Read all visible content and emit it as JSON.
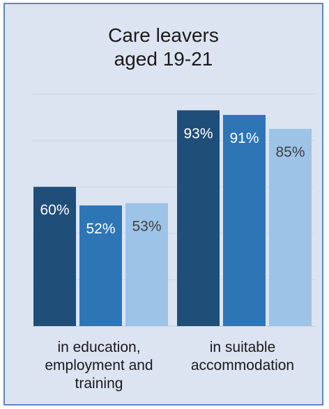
{
  "chart_data": {
    "type": "bar",
    "title_lines": [
      "Care leavers",
      "aged 19-21"
    ],
    "categories": [
      [
        "in education,",
        "employment and",
        "training"
      ],
      [
        "in suitable",
        "accommodation"
      ]
    ],
    "series": [
      {
        "values": [
          60,
          93
        ],
        "labels": [
          "60%",
          "93%"
        ]
      },
      {
        "values": [
          52,
          91
        ],
        "labels": [
          "52%",
          "91%"
        ]
      },
      {
        "values": [
          53,
          85
        ],
        "labels": [
          "53%",
          "85%"
        ]
      }
    ],
    "ylim": [
      0,
      100
    ],
    "grid": true,
    "colors": [
      "#1f4e79",
      "#2e75b6",
      "#9dc3e6"
    ],
    "label_colors": [
      "#ffffff",
      "#ffffff",
      "#404040"
    ]
  }
}
